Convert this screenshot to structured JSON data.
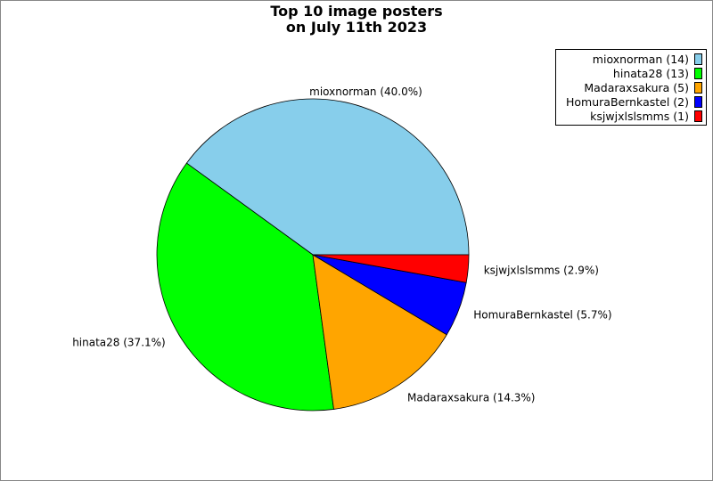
{
  "chart_data": {
    "type": "pie",
    "title": "Top 10 image posters\non July 11th 2023",
    "title_lines": [
      "Top 10 image posters",
      "on July 11th 2023"
    ],
    "slices": [
      {
        "name": "mioxnorman",
        "value": 14,
        "percent": "40.0%",
        "color": "#87CEEB"
      },
      {
        "name": "hinata28",
        "value": 13,
        "percent": "37.1%",
        "color": "#00FF00"
      },
      {
        "name": "Madaraxsakura",
        "value": 5,
        "percent": "14.3%",
        "color": "#FFA500"
      },
      {
        "name": "HomuraBernkastel",
        "value": 2,
        "percent": "5.7%",
        "color": "#0000FF"
      },
      {
        "name": "ksjwjxlslsmms",
        "value": 1,
        "percent": "2.9%",
        "color": "#FF0000"
      }
    ],
    "legend_position": "top-right"
  }
}
